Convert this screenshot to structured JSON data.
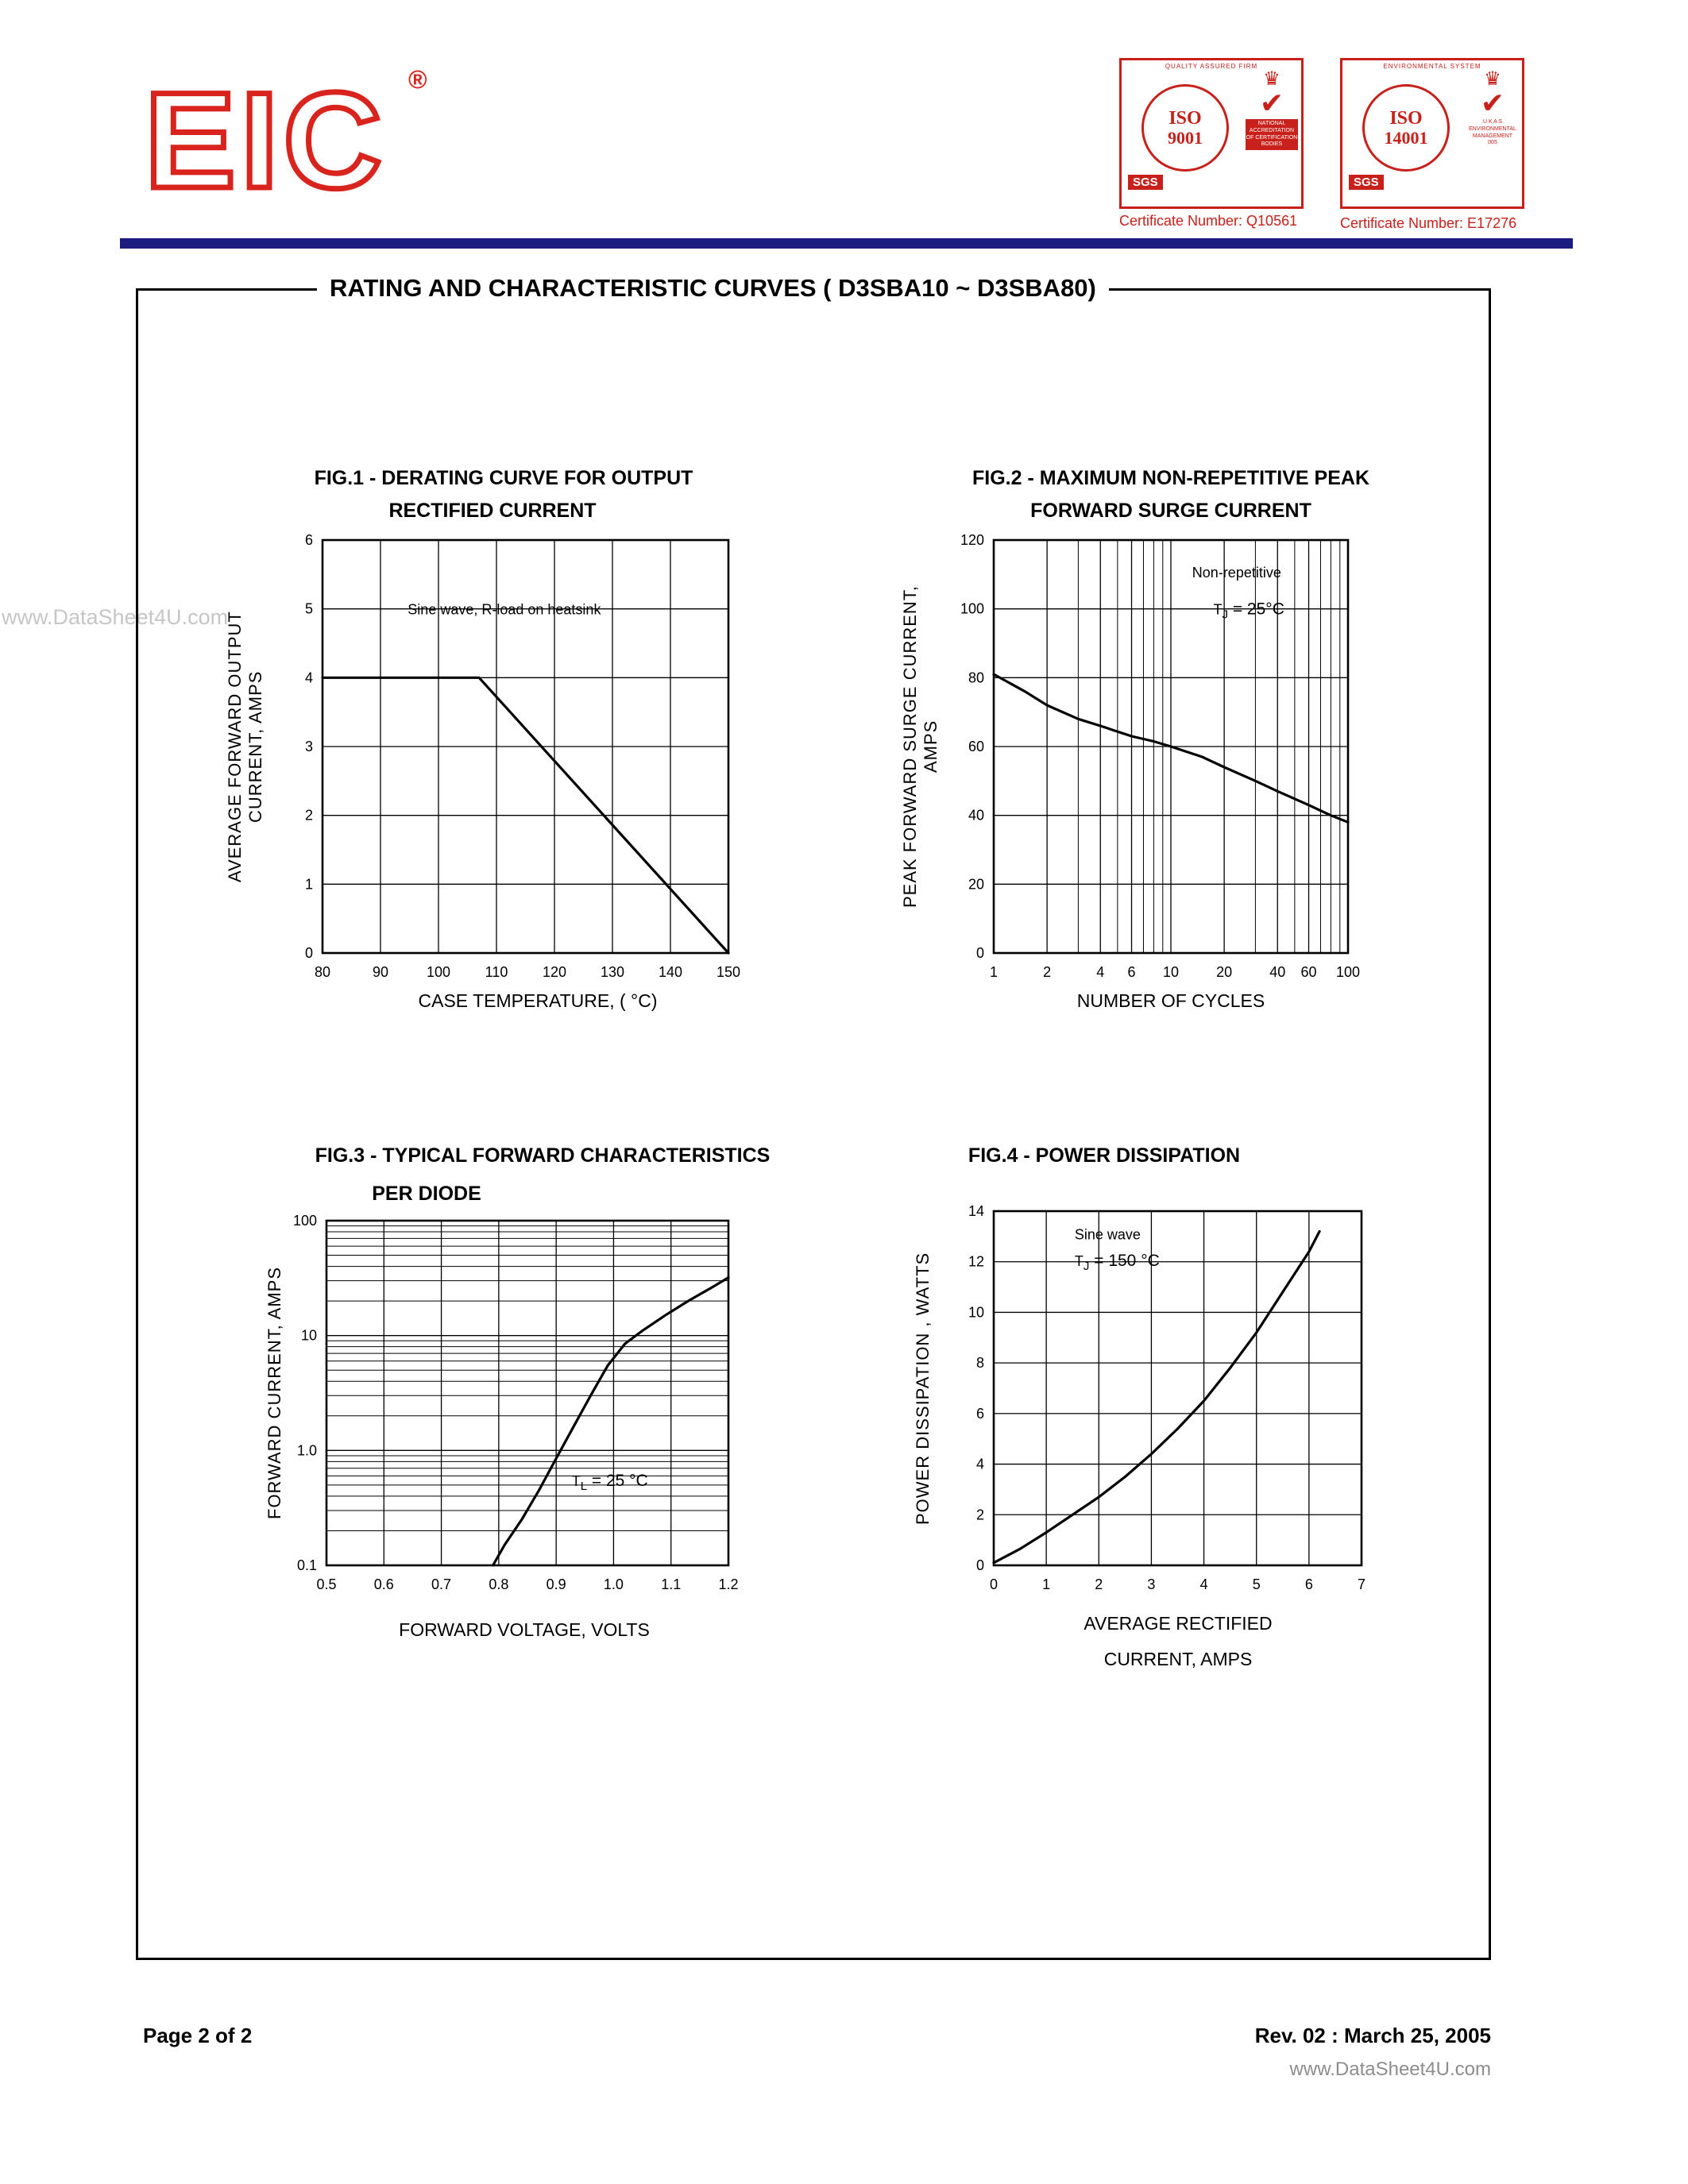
{
  "header": {
    "logo": "EIC",
    "registered": "®",
    "badges": [
      {
        "ring": "QUALITY ASSURED FIRM",
        "iso": "ISO",
        "number": "9001",
        "org": "SGS",
        "crown": "♛",
        "check": "✔",
        "panel": [
          "NATIONAL",
          "ACCREDITATION",
          "OF CERTIFICATION",
          "BODIES"
        ],
        "cert": "Certificate Number: Q10561"
      },
      {
        "ring": "ENVIRONMENTAL SYSTEM",
        "iso": "ISO",
        "number": "14001",
        "org": "SGS",
        "crown": "♛",
        "check": "✔",
        "panel": [
          "U K A S",
          "ENVIRONMENTAL",
          "MANAGEMENT",
          "005"
        ],
        "cert": "Certificate Number: E17276"
      }
    ]
  },
  "box_title": "RATING AND CHARACTERISTIC CURVES  ( D3SBA10 ~ D3SBA80)",
  "watermark": "www.DataSheet4U.com",
  "footer": {
    "page": "Page 2 of 2",
    "revision": "Rev. 02 : March 25, 2005",
    "site": "www.DataSheet4U.com"
  },
  "chart_data": [
    {
      "id": "fig1",
      "type": "line",
      "title_lines": [
        "FIG.1 - DERATING CURVE FOR OUTPUT",
        "RECTIFIED CURRENT"
      ],
      "xlabel_lines": [
        "CASE TEMPERATURE, ( °C)"
      ],
      "ylabel_lines": [
        "AVERAGE FORWARD OUTPUT",
        "CURRENT, AMPS"
      ],
      "x": {
        "scale": "linear",
        "min": 80,
        "max": 150,
        "ticks": [
          80,
          90,
          100,
          110,
          120,
          130,
          140,
          150
        ]
      },
      "y": {
        "scale": "linear",
        "min": 0,
        "max": 6,
        "ticks": [
          0,
          1,
          2,
          3,
          4,
          5,
          6
        ]
      },
      "series": [
        {
          "name": "derating-curve",
          "points": [
            [
              80,
              4
            ],
            [
              107,
              4
            ],
            [
              150,
              0
            ]
          ]
        }
      ],
      "annotations": [
        {
          "fx": 0.21,
          "fy": 0.18,
          "parts": [
            {
              "t": "Sine wave, R-load on heatsink"
            }
          ]
        }
      ]
    },
    {
      "id": "fig2",
      "type": "line",
      "title_lines": [
        "FIG.2 - MAXIMUM NON-REPETITIVE PEAK",
        "FORWARD SURGE CURRENT"
      ],
      "xlabel_lines": [
        "NUMBER OF CYCLES"
      ],
      "ylabel_lines": [
        "PEAK FORWARD SURGE CURRENT,",
        "AMPS"
      ],
      "x": {
        "scale": "log",
        "min": 1,
        "max": 100,
        "ticks": [
          1,
          2,
          4,
          6,
          10,
          20,
          40,
          60,
          100
        ],
        "tick_labels": [
          "1",
          "2",
          "4",
          "6",
          "10",
          "20",
          "40",
          "60",
          "100"
        ],
        "minor": [
          3,
          5,
          7,
          8,
          9,
          30,
          50,
          70,
          80,
          90
        ]
      },
      "y": {
        "scale": "linear",
        "min": 0,
        "max": 120,
        "ticks": [
          0,
          20,
          40,
          60,
          80,
          100,
          120
        ]
      },
      "series": [
        {
          "name": "surge-current",
          "points": [
            [
              1,
              81
            ],
            [
              1.5,
              76
            ],
            [
              2,
              72
            ],
            [
              3,
              68
            ],
            [
              4,
              66
            ],
            [
              6,
              63
            ],
            [
              8,
              61.5
            ],
            [
              10,
              60
            ],
            [
              15,
              57
            ],
            [
              20,
              54
            ],
            [
              30,
              50
            ],
            [
              40,
              47
            ],
            [
              60,
              43
            ],
            [
              80,
              40
            ],
            [
              100,
              38
            ]
          ]
        }
      ],
      "annotations": [
        {
          "fx": 0.56,
          "fy": 0.09,
          "parts": [
            {
              "t": "Non-repetitive"
            }
          ]
        },
        {
          "fx": 0.62,
          "fy": 0.18,
          "parts": [
            {
              "t": "T"
            },
            {
              "t": "J",
              "sub": true
            },
            {
              "t": " = 25°C"
            }
          ]
        }
      ]
    },
    {
      "id": "fig3",
      "type": "line",
      "title_lines": [
        "FIG.3 - TYPICAL FORWARD CHARACTERISTICS",
        "PER DIODE"
      ],
      "xlabel_lines": [
        "FORWARD VOLTAGE, VOLTS"
      ],
      "ylabel_lines": [
        "FORWARD CURRENT, AMPS"
      ],
      "x": {
        "scale": "linear",
        "min": 0.5,
        "max": 1.2,
        "ticks": [
          0.5,
          0.6,
          0.7,
          0.8,
          0.9,
          1.0,
          1.1,
          1.2
        ],
        "tick_labels": [
          "0.5",
          "0.6",
          "0.7",
          "0.8",
          "0.9",
          "1.0",
          "1.1",
          "1.2"
        ]
      },
      "y": {
        "scale": "log",
        "min": 0.1,
        "max": 100,
        "ticks": [
          0.1,
          1,
          10,
          100
        ],
        "tick_labels": [
          "0.1",
          "1.0",
          "10",
          "100"
        ],
        "minor": [
          0.2,
          0.3,
          0.4,
          0.5,
          0.6,
          0.7,
          0.8,
          0.9,
          2,
          3,
          4,
          5,
          6,
          7,
          8,
          9,
          20,
          30,
          40,
          50,
          60,
          70,
          80,
          90
        ]
      },
      "series": [
        {
          "name": "forward-characteristic",
          "points": [
            [
              0.79,
              0.1
            ],
            [
              0.81,
              0.15
            ],
            [
              0.84,
              0.25
            ],
            [
              0.87,
              0.45
            ],
            [
              0.9,
              0.85
            ],
            [
              0.93,
              1.6
            ],
            [
              0.96,
              3.0
            ],
            [
              0.99,
              5.5
            ],
            [
              1.02,
              8.5
            ],
            [
              1.05,
              11
            ],
            [
              1.09,
              15
            ],
            [
              1.13,
              20
            ],
            [
              1.17,
              26
            ],
            [
              1.2,
              32
            ]
          ]
        }
      ],
      "annotations": [
        {
          "fx": 0.61,
          "fy": 0.77,
          "parts": [
            {
              "t": "T"
            },
            {
              "t": "L",
              "sub": true
            },
            {
              "t": " = 25 °C"
            }
          ]
        }
      ]
    },
    {
      "id": "fig4",
      "type": "line",
      "title_lines": [
        "FIG.4 - POWER DISSIPATION"
      ],
      "xlabel_lines": [
        "AVERAGE RECTIFIED",
        "CURRENT, AMPS"
      ],
      "ylabel_lines": [
        "POWER DISSIPATION , WATTS"
      ],
      "x": {
        "scale": "linear",
        "min": 0,
        "max": 7,
        "ticks": [
          0,
          1,
          2,
          3,
          4,
          5,
          6,
          7
        ]
      },
      "y": {
        "scale": "linear",
        "min": 0,
        "max": 14,
        "ticks": [
          0,
          2,
          4,
          6,
          8,
          10,
          12,
          14
        ]
      },
      "series": [
        {
          "name": "power-dissipation",
          "points": [
            [
              0,
              0.1
            ],
            [
              0.5,
              0.65
            ],
            [
              1,
              1.3
            ],
            [
              1.5,
              2.0
            ],
            [
              2,
              2.7
            ],
            [
              2.5,
              3.5
            ],
            [
              3,
              4.4
            ],
            [
              3.5,
              5.4
            ],
            [
              4,
              6.5
            ],
            [
              4.5,
              7.8
            ],
            [
              5,
              9.2
            ],
            [
              5.5,
              10.8
            ],
            [
              6,
              12.4
            ],
            [
              6.2,
              13.2
            ]
          ]
        }
      ],
      "annotations": [
        {
          "fx": 0.22,
          "fy": 0.08,
          "parts": [
            {
              "t": "Sine wave"
            }
          ]
        },
        {
          "fx": 0.22,
          "fy": 0.155,
          "parts": [
            {
              "t": "T"
            },
            {
              "t": "J",
              "sub": true
            },
            {
              "t": " = 150 °C"
            }
          ]
        }
      ]
    }
  ]
}
